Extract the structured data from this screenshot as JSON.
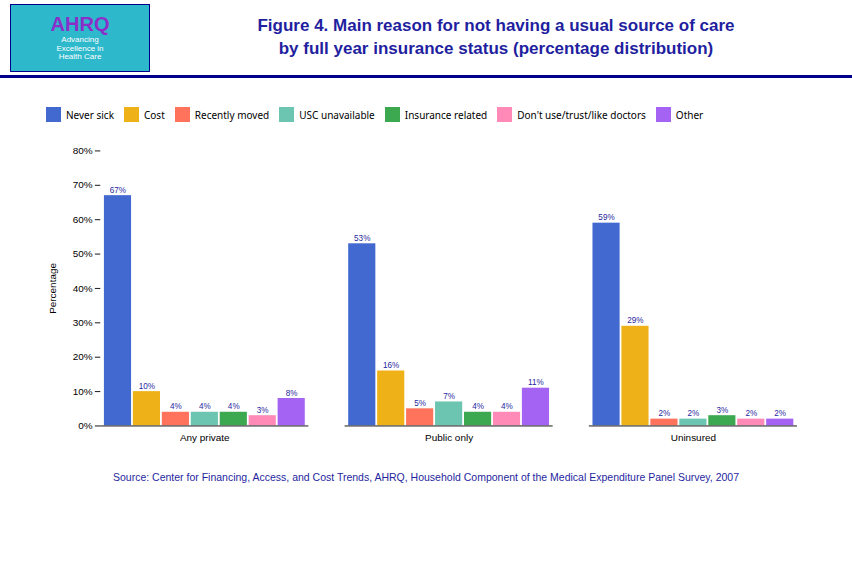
{
  "chart_data": {
    "type": "bar",
    "title": "Figure 4. Main reason for not having a usual source of care",
    "subtitle": "by full year insurance status (percentage distribution)",
    "annotations": [
      "AHRQ",
      "Advancing\nExcellence in\nHealth Care"
    ],
    "caption": "Source: Center for Financing, Access, and Cost Trends, AHRQ, Household Component of the Medical Expenditure Panel Survey, 2007",
    "categories": [
      "Any private",
      "Public only",
      "Uninsured"
    ],
    "series": [
      {
        "name": "Never sick",
        "values": [
          67,
          53,
          59
        ],
        "value_labels": [
          "67%",
          "53%",
          "59%"
        ]
      },
      {
        "name": "Cost",
        "values": [
          10,
          16,
          29
        ],
        "value_labels": [
          "10%",
          "16%",
          "29%"
        ]
      },
      {
        "name": "Recently moved",
        "values": [
          4,
          5,
          2
        ],
        "value_labels": [
          "4%",
          "5%",
          "2%"
        ]
      },
      {
        "name": "USC unavailable",
        "values": [
          4,
          7,
          2
        ],
        "value_labels": [
          "4%",
          "7%",
          "2%"
        ]
      },
      {
        "name": "Insurance related",
        "values": [
          4,
          4,
          3
        ],
        "value_labels": [
          "4%",
          "4%",
          "3%"
        ]
      },
      {
        "name": "Don't use/trust/like doctors",
        "values": [
          3,
          4,
          2
        ],
        "value_labels": [
          "3%",
          "4%",
          "2%"
        ]
      },
      {
        "name": "Other",
        "values": [
          8,
          11,
          2
        ],
        "value_labels": [
          "8%",
          "11%",
          "2%"
        ]
      }
    ],
    "ylabel": "Percentage",
    "ylim": [
      0,
      80
    ],
    "yticks": [
      {
        "value": 0,
        "label": "0%"
      },
      {
        "value": 10,
        "label": "10%"
      },
      {
        "value": 20,
        "label": "20%"
      },
      {
        "value": 30,
        "label": "30%"
      },
      {
        "value": 40,
        "label": "40%"
      },
      {
        "value": 50,
        "label": "50%"
      },
      {
        "value": 60,
        "label": "60%"
      },
      {
        "value": 70,
        "label": "70%"
      },
      {
        "value": 80,
        "label": "80%"
      }
    ],
    "grid": false,
    "legend": "top",
    "data_labels": true
  }
}
